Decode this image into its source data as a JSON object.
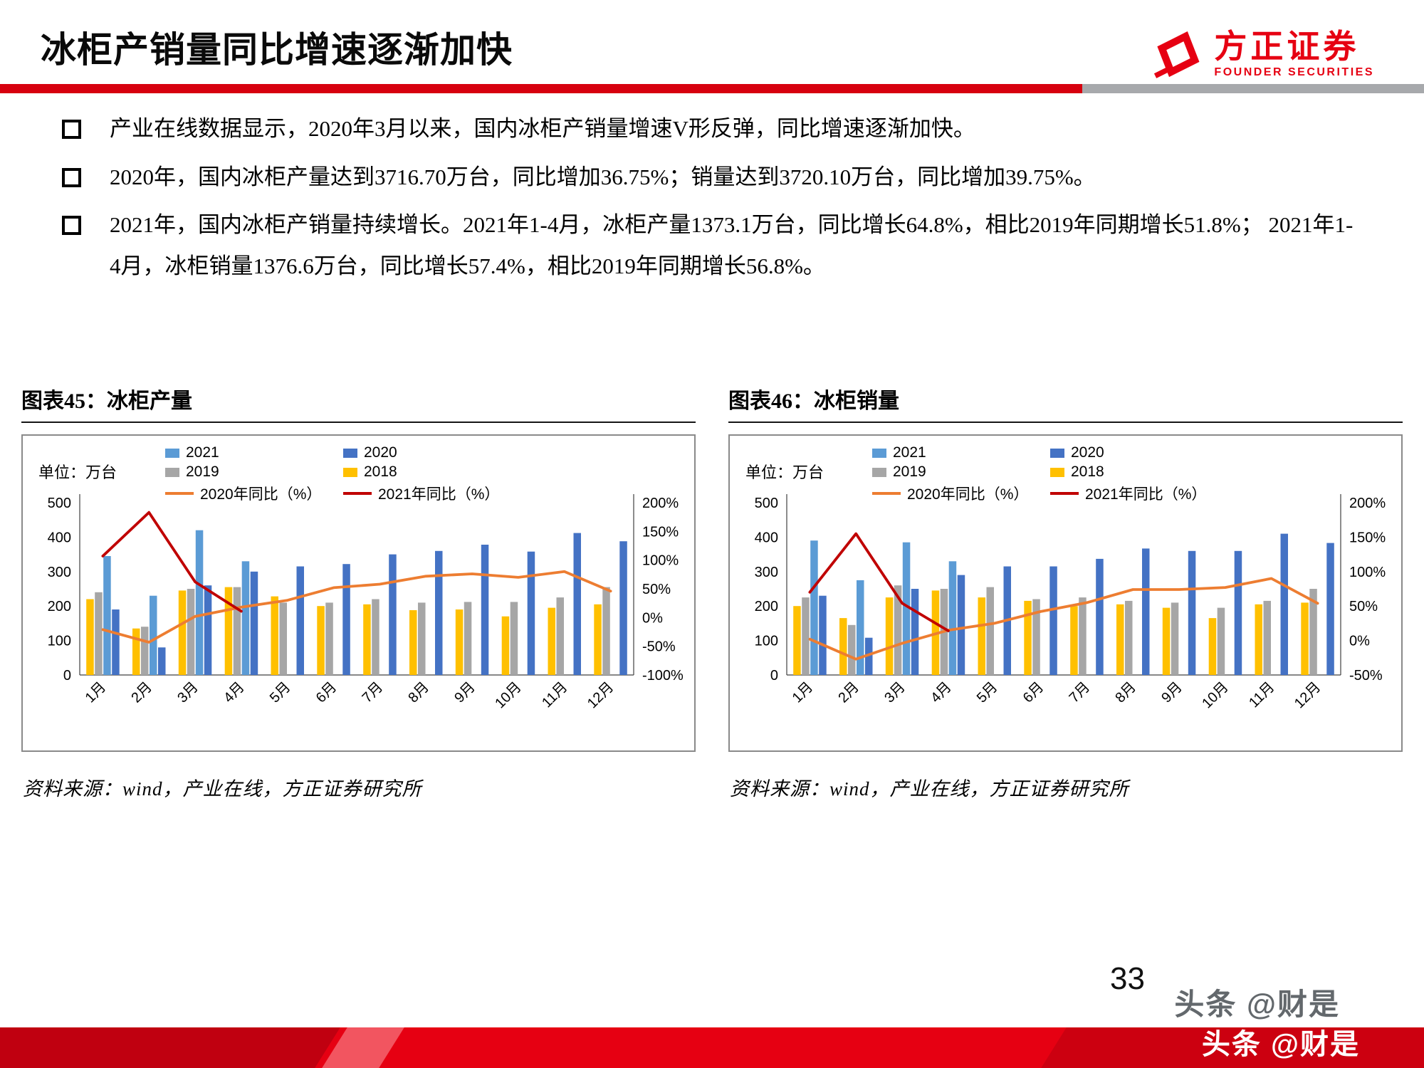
{
  "page": {
    "title": "冰柜产销量同比增速逐渐加快",
    "page_number": "33",
    "watermark": "头条 @财是"
  },
  "logo": {
    "brand_cn": "方正证券",
    "brand_en": "FOUNDER SECURITIES"
  },
  "colors": {
    "brand_red": "#E60012",
    "divider_gray": "#A7A9AC",
    "blue_2021": "#5B9BD5",
    "blue_2020": "#4472C4",
    "gray_2019": "#A6A6A6",
    "yellow_2018": "#FFC000",
    "orange_yoy_2020": "#ED7D31",
    "darkred_yoy_2021": "#C00000"
  },
  "bullets": [
    {
      "text": "产业在线数据显示，2020年3月以来，国内冰柜产销量增速V形反弹，同比增速逐渐加快。"
    },
    {
      "text": "2020年，国内冰柜产量达到3716.70万台，同比增加36.75%；销量达到3720.10万台，同比增加39.75%。"
    },
    {
      "text": "2021年，国内冰柜产销量持续增长。2021年1-4月，冰柜产量1373.1万台，同比增长64.8%，相比2019年同期增长51.8%； 2021年1-4月，冰柜销量1376.6万台，同比增长57.4%，相比2019年同期增长56.8%。"
    }
  ],
  "figures": [
    {
      "title": "图表45：冰柜产量",
      "unit_label": "单位：万台",
      "source": "资料来源：wind，产业在线，方正证券研究所"
    },
    {
      "title": "图表46：冰柜销量",
      "unit_label": "单位：万台",
      "source": "资料来源：wind，产业在线，方正证券研究所"
    }
  ],
  "chart_data": [
    {
      "type": "bar",
      "subtype": "bar+line combo",
      "title": "冰柜产量",
      "categories": [
        "1月",
        "2月",
        "3月",
        "4月",
        "5月",
        "6月",
        "7月",
        "8月",
        "9月",
        "10月",
        "11月",
        "12月"
      ],
      "left_axis": {
        "min": 0,
        "max": 500,
        "step": 100,
        "unit": "万台"
      },
      "right_axis": {
        "min": -100,
        "max": 200,
        "step": 50,
        "suffix": "%"
      },
      "grid": false,
      "legend_position": "top",
      "bar_series": [
        {
          "name": "2018",
          "color": "#FFC000",
          "values": [
            220,
            135,
            245,
            255,
            228,
            200,
            205,
            188,
            190,
            170,
            195,
            205
          ]
        },
        {
          "name": "2019",
          "color": "#A6A6A6",
          "values": [
            240,
            140,
            250,
            255,
            210,
            210,
            220,
            210,
            212,
            212,
            225,
            255
          ]
        },
        {
          "name": "2021",
          "color": "#5B9BD5",
          "values": [
            345,
            230,
            420,
            330,
            null,
            null,
            null,
            null,
            null,
            null,
            null,
            null
          ]
        },
        {
          "name": "2020",
          "color": "#4472C4",
          "values": [
            190,
            80,
            260,
            300,
            315,
            322,
            350,
            360,
            378,
            358,
            412,
            388
          ]
        }
      ],
      "line_series": [
        {
          "name": "2020年同比（%）",
          "color": "#ED7D31",
          "values": [
            -21,
            -43,
            2,
            18,
            30,
            52,
            58,
            72,
            76,
            70,
            80,
            46
          ]
        },
        {
          "name": "2021年同比（%）",
          "color": "#C00000",
          "values": [
            107,
            183,
            62,
            11,
            null,
            null,
            null,
            null,
            null,
            null,
            null,
            null
          ]
        }
      ],
      "legend": [
        {
          "label": "2021",
          "type": "bar",
          "color": "#5B9BD5"
        },
        {
          "label": "2020",
          "type": "bar",
          "color": "#4472C4"
        },
        {
          "label": "2019",
          "type": "bar",
          "color": "#A6A6A6"
        },
        {
          "label": "2018",
          "type": "bar",
          "color": "#FFC000"
        },
        {
          "label": "2020年同比（%）",
          "type": "line",
          "color": "#ED7D31"
        },
        {
          "label": "2021年同比（%）",
          "type": "line",
          "color": "#C00000"
        }
      ]
    },
    {
      "type": "bar",
      "subtype": "bar+line combo",
      "title": "冰柜销量",
      "categories": [
        "1月",
        "2月",
        "3月",
        "4月",
        "5月",
        "6月",
        "7月",
        "8月",
        "9月",
        "10月",
        "11月",
        "12月"
      ],
      "left_axis": {
        "min": 0,
        "max": 500,
        "step": 100,
        "unit": "万台"
      },
      "right_axis": {
        "min": -50,
        "max": 200,
        "step": 50,
        "suffix": "%"
      },
      "grid": false,
      "legend_position": "top",
      "bar_series": [
        {
          "name": "2018",
          "color": "#FFC000",
          "values": [
            200,
            165,
            225,
            245,
            225,
            215,
            200,
            205,
            195,
            165,
            205,
            210
          ]
        },
        {
          "name": "2019",
          "color": "#A6A6A6",
          "values": [
            225,
            145,
            260,
            250,
            255,
            220,
            225,
            215,
            210,
            195,
            215,
            250
          ]
        },
        {
          "name": "2021",
          "color": "#5B9BD5",
          "values": [
            390,
            275,
            385,
            330,
            null,
            null,
            null,
            null,
            null,
            null,
            null,
            null
          ]
        },
        {
          "name": "2020",
          "color": "#4472C4",
          "values": [
            230,
            108,
            250,
            290,
            315,
            315,
            337,
            367,
            360,
            360,
            410,
            383
          ]
        }
      ],
      "line_series": [
        {
          "name": "2020年同比（%）",
          "color": "#ED7D31",
          "values": [
            2,
            -27,
            -4,
            15,
            25,
            42,
            55,
            74,
            74,
            77,
            90,
            54
          ]
        },
        {
          "name": "2021年同比（%）",
          "color": "#C00000",
          "values": [
            70,
            155,
            54,
            14,
            null,
            null,
            null,
            null,
            null,
            null,
            null,
            null
          ]
        }
      ],
      "legend": [
        {
          "label": "2021",
          "type": "bar",
          "color": "#5B9BD5"
        },
        {
          "label": "2020",
          "type": "bar",
          "color": "#4472C4"
        },
        {
          "label": "2019",
          "type": "bar",
          "color": "#A6A6A6"
        },
        {
          "label": "2018",
          "type": "bar",
          "color": "#FFC000"
        },
        {
          "label": "2020年同比（%）",
          "type": "line",
          "color": "#ED7D31"
        },
        {
          "label": "2021年同比（%）",
          "type": "line",
          "color": "#C00000"
        }
      ]
    }
  ]
}
